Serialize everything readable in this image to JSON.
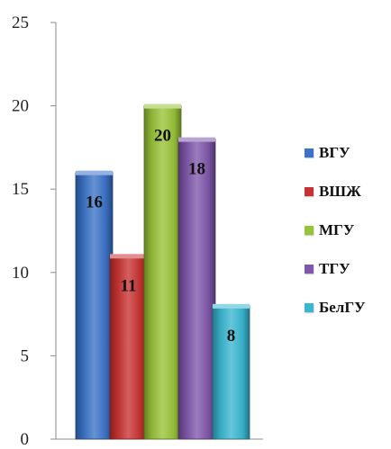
{
  "chart_data": {
    "type": "bar",
    "categories": [
      "ВГУ",
      "ВШЖ",
      "МГУ",
      "ТГУ",
      "БелГУ"
    ],
    "values": [
      16,
      11,
      20,
      18,
      8
    ],
    "value_labels": [
      "16",
      "11",
      "20",
      "18",
      "8"
    ],
    "colors": [
      "#3b73c8",
      "#c93232",
      "#98c337",
      "#7f57ab",
      "#39b7d1"
    ],
    "ylim": [
      0,
      25
    ],
    "yticks": [
      0,
      5,
      10,
      15,
      20,
      25
    ],
    "ytick_labels": [
      "0",
      "5",
      "10",
      "15",
      "20",
      "25"
    ],
    "grid": false,
    "legend_position": "right",
    "legend": [
      "ВГУ",
      "ВШЖ",
      "МГУ",
      "ТГУ",
      "БелГУ"
    ]
  }
}
